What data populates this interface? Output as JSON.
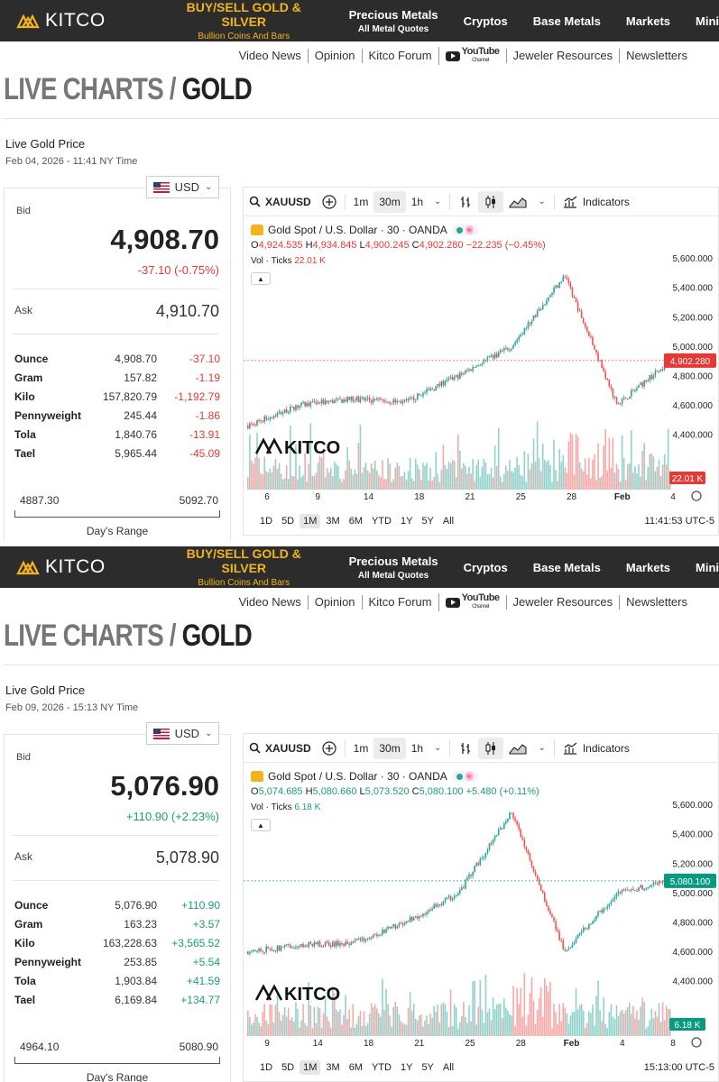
{
  "nav": {
    "logo_text": "KITCO",
    "buy_sell": "BUY/SELL GOLD & SILVER",
    "buy_sell_sub": "Bullion Coins And Bars",
    "precious_metals": "Precious Metals",
    "precious_metals_sub": "All Metal Quotes",
    "cryptos": "Cryptos",
    "base_metals": "Base Metals",
    "markets": "Markets",
    "mining": "Mini"
  },
  "subnav": {
    "video_news": "Video News",
    "opinion": "Opinion",
    "forum": "Kitco Forum",
    "youtube": "YouTube",
    "youtube_sub": "Channel",
    "jeweler": "Jeweler Resources",
    "newsletters": "Newsletters"
  },
  "title": {
    "part1": "LIVE CHARTS /",
    "part2": "GOLD"
  },
  "common": {
    "live_label": "Live Gold Price",
    "currency": "USD",
    "bid_label": "Bid",
    "ask_label": "Ask",
    "range_label": "Day's Range",
    "symbol": "XAUUSD",
    "tf_1m": "1m",
    "tf_30m": "30m",
    "tf_1h": "1h",
    "indicators": "Indicators",
    "legend_title": "Gold Spot / U.S. Dollar · 30 · OANDA",
    "vol_label": "Vol · Ticks",
    "ranges": [
      "1D",
      "5D",
      "1M",
      "3M",
      "6M",
      "YTD",
      "1Y",
      "5Y",
      "All"
    ],
    "y_ticks": [
      "5,600.000",
      "5,400.000",
      "5,200.000",
      "5,000.000",
      "4,800.000",
      "4,600.000",
      "4,400.000"
    ],
    "y_values": [
      5600,
      5400,
      5200,
      5000,
      4800,
      4600,
      4400
    ]
  },
  "panels": [
    {
      "date": "Feb 04, 2026 - 11:41 NY Time",
      "bid": "4,908.70",
      "change": "-37.10 (-0.75%)",
      "direction": "down",
      "ask": "4,910.70",
      "units": [
        {
          "name": "Ounce",
          "value": "4,908.70",
          "change": "-37.10"
        },
        {
          "name": "Gram",
          "value": "157.82",
          "change": "-1.19"
        },
        {
          "name": "Kilo",
          "value": "157,820.79",
          "change": "-1,192.79"
        },
        {
          "name": "Pennyweight",
          "value": "245.44",
          "change": "-1.86"
        },
        {
          "name": "Tola",
          "value": "1,840.76",
          "change": "-13.91"
        },
        {
          "name": "Tael",
          "value": "5,965.44",
          "change": "-45.09"
        }
      ],
      "range_low": "4887.30",
      "range_high": "5092.70",
      "ohlc": {
        "o": "4,924.535",
        "h": "4,934.845",
        "l": "4,900.245",
        "c": "4,902.280",
        "chg": "−22.235 (−0.45%)"
      },
      "vol": "22.01 K",
      "last_price": "4,902.280",
      "last_value": 4902.28,
      "x_labels": [
        "6",
        "9",
        "14",
        "18",
        "21",
        "25",
        "28",
        "Feb",
        "4"
      ],
      "time": "11:41:53 UTC-5",
      "selected_range": "1M"
    },
    {
      "date": "Feb 09, 2026 - 15:13 NY Time",
      "bid": "5,076.90",
      "change": "+110.90 (+2.23%)",
      "direction": "up",
      "ask": "5,078.90",
      "units": [
        {
          "name": "Ounce",
          "value": "5,076.90",
          "change": "+110.90"
        },
        {
          "name": "Gram",
          "value": "163.23",
          "change": "+3.57"
        },
        {
          "name": "Kilo",
          "value": "163,228.63",
          "change": "+3,565.52"
        },
        {
          "name": "Pennyweight",
          "value": "253.85",
          "change": "+5.54"
        },
        {
          "name": "Tola",
          "value": "1,903.84",
          "change": "+41.59"
        },
        {
          "name": "Tael",
          "value": "6,169.84",
          "change": "+134.77"
        }
      ],
      "range_low": "4964.10",
      "range_high": "5080.90",
      "ohlc": {
        "o": "5,074.685",
        "h": "5,080.660",
        "l": "5,073.520",
        "c": "5,080.100",
        "chg": "+5.480 (+0.11%)"
      },
      "vol": "6.18 K",
      "last_price": "5,080.100",
      "last_value": 5080.1,
      "x_labels": [
        "9",
        "14",
        "18",
        "21",
        "25",
        "28",
        "Feb",
        "4",
        "8"
      ],
      "time": "15:13:00 UTC-5",
      "selected_range": "1M"
    }
  ],
  "colors": {
    "up": "#26a69a",
    "down": "#ef5350",
    "nav_bg": "#2c2c2c",
    "gold": "#f3b41b"
  },
  "chart_data": [
    {
      "type": "line",
      "series": [
        {
          "x": [
            "6",
            "9",
            "14",
            "18",
            "21",
            "25",
            "28",
            "Feb",
            "4"
          ],
          "values": [
            4460,
            4600,
            4640,
            4620,
            4800,
            5000,
            5480,
            4600,
            4902
          ]
        }
      ],
      "ylim": [
        4300,
        5650
      ],
      "xlabel": "",
      "ylabel": ""
    },
    {
      "type": "line",
      "series": [
        {
          "x": [
            "9",
            "14",
            "18",
            "21",
            "25",
            "28",
            "Feb",
            "4",
            "8"
          ],
          "values": [
            4600,
            4640,
            4660,
            4800,
            5000,
            5550,
            4600,
            5000,
            5080
          ]
        }
      ],
      "ylim": [
        4300,
        5650
      ],
      "xlabel": "",
      "ylabel": ""
    }
  ]
}
